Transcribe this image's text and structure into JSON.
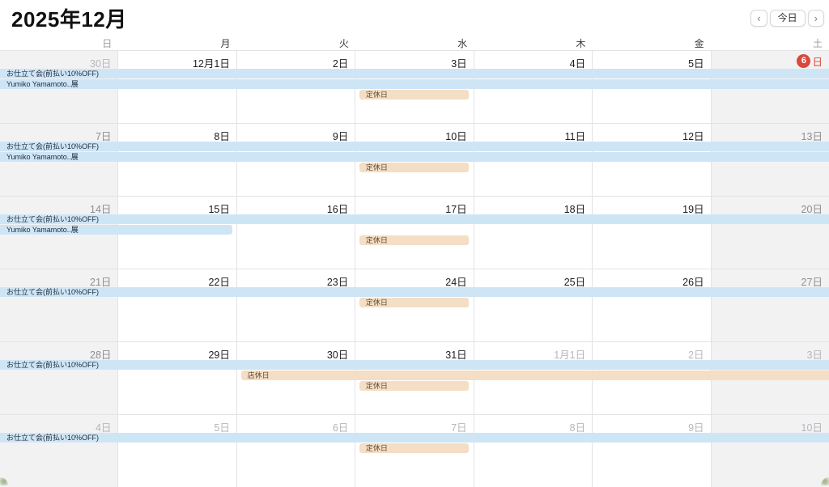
{
  "header": {
    "title": "2025年12月",
    "nav": {
      "prev": "‹",
      "today": "今日",
      "next": "›"
    }
  },
  "colors": {
    "event_blue": "#cee5f6",
    "event_orange": "#f4dec5",
    "today_red": "#d9483c",
    "weekend_bg": "#f2f2f3"
  },
  "weekday_headers": [
    {
      "label": "日",
      "weekend": true
    },
    {
      "label": "月",
      "weekend": false
    },
    {
      "label": "火",
      "weekend": false
    },
    {
      "label": "水",
      "weekend": false
    },
    {
      "label": "木",
      "weekend": false
    },
    {
      "label": "金",
      "weekend": false
    },
    {
      "label": "土",
      "weekend": true
    }
  ],
  "weeks": [
    {
      "days": [
        {
          "label": "30日",
          "style": "muted"
        },
        {
          "label": "12月1日",
          "style": "normal"
        },
        {
          "label": "2日",
          "style": "normal"
        },
        {
          "label": "3日",
          "style": "normal"
        },
        {
          "label": "4日",
          "style": "normal"
        },
        {
          "label": "5日",
          "style": "normal"
        },
        {
          "label": "6日",
          "style": "today",
          "circle_text": "6",
          "suffix": "日"
        }
      ],
      "banners": [
        {
          "text": "お仕立て会(前払い10%OFF)",
          "color": "blue",
          "slot": 0,
          "start": 0,
          "span": 7,
          "cont_left": true,
          "cont_right": true
        },
        {
          "text": "Yumiko Yamamoto..展",
          "color": "blue",
          "slot": 1,
          "start": 0,
          "span": 7,
          "cont_left": true,
          "cont_right": true
        },
        {
          "text": "定休日",
          "color": "orange",
          "slot": 2,
          "start": 3,
          "span": 1,
          "cont_left": false,
          "cont_right": false
        }
      ]
    },
    {
      "days": [
        {
          "label": "7日",
          "style": "weekend"
        },
        {
          "label": "8日",
          "style": "normal"
        },
        {
          "label": "9日",
          "style": "normal"
        },
        {
          "label": "10日",
          "style": "normal"
        },
        {
          "label": "11日",
          "style": "normal"
        },
        {
          "label": "12日",
          "style": "normal"
        },
        {
          "label": "13日",
          "style": "weekend"
        }
      ],
      "banners": [
        {
          "text": "お仕立て会(前払い10%OFF)",
          "color": "blue",
          "slot": 0,
          "start": 0,
          "span": 7,
          "cont_left": true,
          "cont_right": true
        },
        {
          "text": "Yumiko Yamamoto..展",
          "color": "blue",
          "slot": 1,
          "start": 0,
          "span": 7,
          "cont_left": true,
          "cont_right": true
        },
        {
          "text": "定休日",
          "color": "orange",
          "slot": 2,
          "start": 3,
          "span": 1,
          "cont_left": false,
          "cont_right": false
        }
      ]
    },
    {
      "days": [
        {
          "label": "14日",
          "style": "weekend"
        },
        {
          "label": "15日",
          "style": "normal"
        },
        {
          "label": "16日",
          "style": "normal"
        },
        {
          "label": "17日",
          "style": "normal"
        },
        {
          "label": "18日",
          "style": "normal"
        },
        {
          "label": "19日",
          "style": "normal"
        },
        {
          "label": "20日",
          "style": "weekend"
        }
      ],
      "banners": [
        {
          "text": "お仕立て会(前払い10%OFF)",
          "color": "blue",
          "slot": 0,
          "start": 0,
          "span": 7,
          "cont_left": true,
          "cont_right": true
        },
        {
          "text": "Yumiko Yamamoto..展",
          "color": "blue",
          "slot": 1,
          "start": 0,
          "span": 2,
          "cont_left": true,
          "cont_right": false
        },
        {
          "text": "定休日",
          "color": "orange",
          "slot": 2,
          "start": 3,
          "span": 1,
          "cont_left": false,
          "cont_right": false
        }
      ]
    },
    {
      "days": [
        {
          "label": "21日",
          "style": "weekend"
        },
        {
          "label": "22日",
          "style": "normal"
        },
        {
          "label": "23日",
          "style": "normal"
        },
        {
          "label": "24日",
          "style": "normal"
        },
        {
          "label": "25日",
          "style": "normal"
        },
        {
          "label": "26日",
          "style": "normal"
        },
        {
          "label": "27日",
          "style": "weekend"
        }
      ],
      "banners": [
        {
          "text": "お仕立て会(前払い10%OFF)",
          "color": "blue",
          "slot": 0,
          "start": 0,
          "span": 7,
          "cont_left": true,
          "cont_right": true
        },
        {
          "text": "定休日",
          "color": "orange",
          "slot": 1,
          "start": 3,
          "span": 1,
          "cont_left": false,
          "cont_right": false
        }
      ]
    },
    {
      "days": [
        {
          "label": "28日",
          "style": "weekend"
        },
        {
          "label": "29日",
          "style": "normal"
        },
        {
          "label": "30日",
          "style": "normal"
        },
        {
          "label": "31日",
          "style": "normal"
        },
        {
          "label": "1月1日",
          "style": "muted"
        },
        {
          "label": "2日",
          "style": "muted"
        },
        {
          "label": "3日",
          "style": "muted"
        }
      ],
      "banners": [
        {
          "text": "お仕立て会(前払い10%OFF)",
          "color": "blue",
          "slot": 0,
          "start": 0,
          "span": 7,
          "cont_left": true,
          "cont_right": true
        },
        {
          "text": "店休日",
          "color": "orange",
          "slot": 1,
          "start": 2,
          "span": 5,
          "cont_left": false,
          "cont_right": true
        },
        {
          "text": "定休日",
          "color": "orange",
          "slot": 2,
          "start": 3,
          "span": 1,
          "cont_left": false,
          "cont_right": false
        }
      ]
    },
    {
      "days": [
        {
          "label": "4日",
          "style": "muted"
        },
        {
          "label": "5日",
          "style": "muted"
        },
        {
          "label": "6日",
          "style": "muted"
        },
        {
          "label": "7日",
          "style": "muted"
        },
        {
          "label": "8日",
          "style": "muted"
        },
        {
          "label": "9日",
          "style": "muted"
        },
        {
          "label": "10日",
          "style": "muted"
        }
      ],
      "banners": [
        {
          "text": "お仕立て会(前払い10%OFF)",
          "color": "blue",
          "slot": 0,
          "start": 0,
          "span": 7,
          "cont_left": true,
          "cont_right": true
        },
        {
          "text": "定休日",
          "color": "orange",
          "slot": 1,
          "start": 3,
          "span": 1,
          "cont_left": false,
          "cont_right": false
        }
      ]
    }
  ]
}
